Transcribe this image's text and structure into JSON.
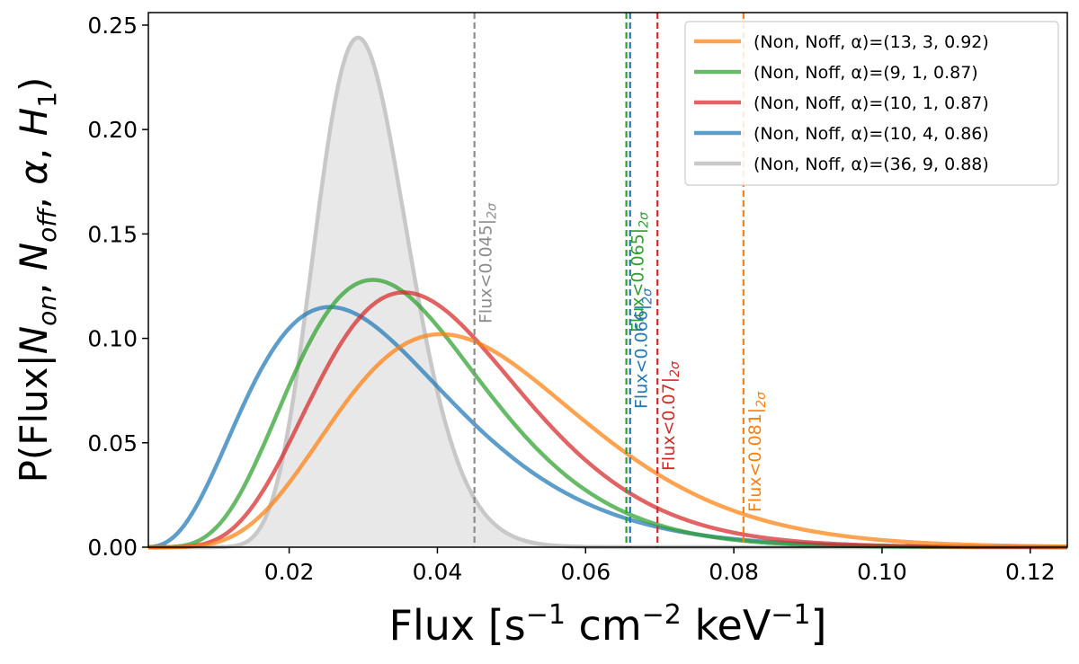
{
  "chart_data": {
    "type": "line",
    "xlabel": {
      "base": "Flux [s",
      "sup1": "−1",
      "mid1": " cm",
      "sup2": "−2",
      "mid2": " keV",
      "sup3": "−1",
      "tail": "]"
    },
    "ylabel": {
      "pre": "P(Flux|",
      "N": "N",
      "on_sub": "on",
      "sep1": ", ",
      "N2": "N",
      "off_sub": "off",
      "sep2": ", ",
      "alpha": "α",
      "sep3": ", ",
      "H": "H",
      "h_sub": "1",
      "close": ")"
    },
    "xlim": [
      0.001,
      0.125
    ],
    "ylim": [
      0,
      0.256
    ],
    "xticks": [
      0.02,
      0.04,
      0.06,
      0.08,
      0.1,
      0.12
    ],
    "xtick_labels": [
      "0.02",
      "0.04",
      "0.06",
      "0.08",
      "0.10",
      "0.12"
    ],
    "yticks": [
      0.0,
      0.05,
      0.1,
      0.15,
      0.2,
      0.25
    ],
    "ytick_labels": [
      "0.00",
      "0.05",
      "0.10",
      "0.15",
      "0.20",
      "0.25"
    ],
    "grid": false,
    "legend_placement": "top-right",
    "series": [
      {
        "name": "(Non, Noff, α)=(13, 3, 0.92)",
        "color": "#ff7f0e",
        "peak_x": 0.0405,
        "peak_y": 0.102,
        "shape": 6.0,
        "filled": false
      },
      {
        "name": "(Non, Noff, α)=(9, 1, 0.87)",
        "color": "#2ca02c",
        "peak_x": 0.0313,
        "peak_y": 0.128,
        "shape": 5.8,
        "filled": false
      },
      {
        "name": "(Non, Noff, α)=(10, 1, 0.87)",
        "color": "#d62728",
        "peak_x": 0.0355,
        "peak_y": 0.122,
        "shape": 6.5,
        "filled": false
      },
      {
        "name": "(Non, Noff, α)=(10, 4, 0.86)",
        "color": "#1f77b4",
        "peak_x": 0.0255,
        "peak_y": 0.115,
        "shape": 3.4,
        "filled": false
      },
      {
        "name": "(Non, Noff, α)=(36, 9, 0.88)",
        "color": "#c8c8c8",
        "peak_x": 0.0293,
        "peak_y": 0.244,
        "shape": 22.0,
        "filled": true
      }
    ],
    "upper_limits": [
      {
        "x": 0.045,
        "label": "Flux<0.045",
        "sub": "2σ",
        "color": "#8c8c8c"
      },
      {
        "x": 0.0655,
        "label": "Flux<0.065",
        "sub": "2σ",
        "color": "#2ca02c"
      },
      {
        "x": 0.066,
        "label": "Flux<0.066",
        "sub": "2σ",
        "color": "#1f77b4"
      },
      {
        "x": 0.0697,
        "label": "Flux<0.07",
        "sub": "2σ",
        "color": "#d62728"
      },
      {
        "x": 0.0813,
        "label": "Flux<0.081",
        "sub": "2σ",
        "color": "#ff7f0e"
      }
    ]
  }
}
